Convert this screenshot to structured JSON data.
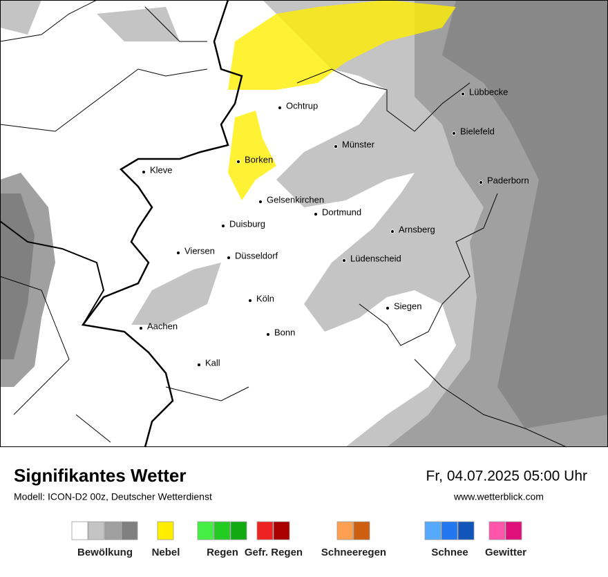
{
  "header": {
    "title": "Signifikantes Wetter",
    "subtitle": "Modell: ICON-D2 00z, Deutscher Wetterdienst",
    "datetime": "Fr, 04.07.2025 05:00 Uhr",
    "website": "www.wetterblick.com"
  },
  "map": {
    "cities": [
      "Ochtrup",
      "Lübbecke",
      "Bielefeld",
      "Münster",
      "Borken",
      "Kleve",
      "Paderborn",
      "Gelsenkirchen",
      "Dortmund",
      "Duisburg",
      "Arnsberg",
      "Viersen",
      "Düsseldorf",
      "Lüdenscheid",
      "Köln",
      "Siegen",
      "Aachen",
      "Bonn",
      "Kall"
    ]
  },
  "legend": [
    {
      "label": "Bewölkung",
      "colors": [
        "#ffffff",
        "#c4c4c4",
        "#a0a0a0",
        "#808080"
      ]
    },
    {
      "label": "Nebel",
      "colors": [
        "#ffee00"
      ]
    },
    {
      "label": "Regen",
      "colors": [
        "#44ee44",
        "#22cc22",
        "#11aa11"
      ]
    },
    {
      "label": "Gefr. Regen",
      "colors": [
        "#ee2222",
        "#aa0000"
      ]
    },
    {
      "label": "Schneeregen",
      "colors": [
        "#ffa050",
        "#cc6010"
      ]
    },
    {
      "label": "Schnee",
      "colors": [
        "#55aaff",
        "#2277ee",
        "#1155bb"
      ]
    },
    {
      "label": "Gewitter",
      "colors": [
        "#ff55aa",
        "#e0107a"
      ]
    }
  ]
}
